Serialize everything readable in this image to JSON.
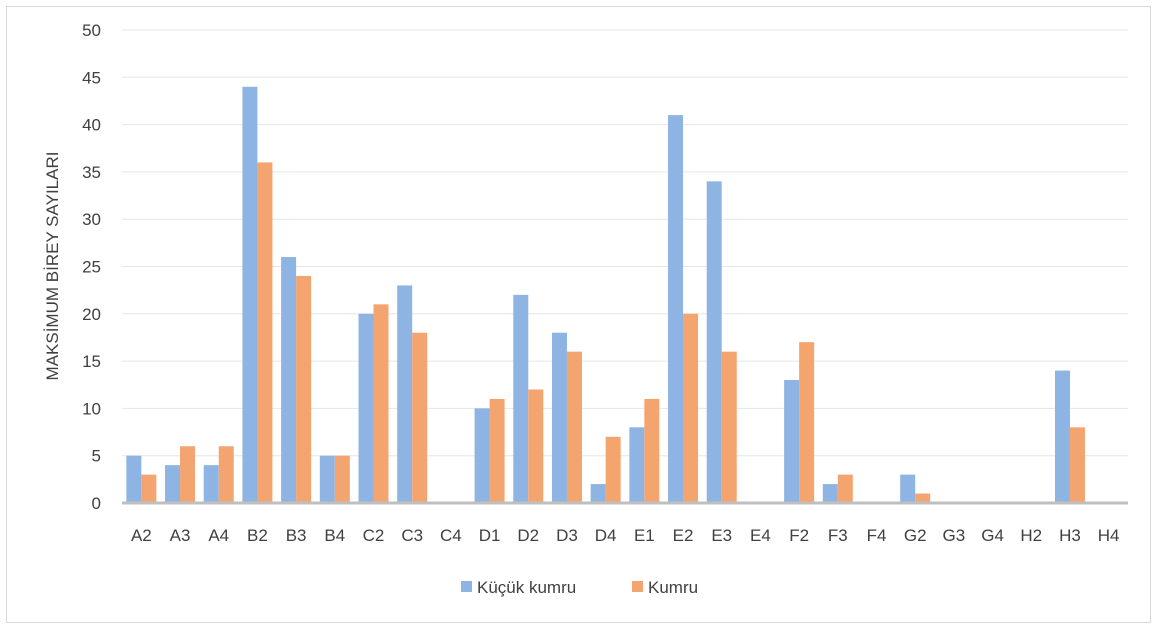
{
  "chart_data": {
    "type": "bar",
    "title": "",
    "xlabel": "",
    "ylabel": "MAKSİMUM BİREY SAYILARI",
    "ylim": [
      0,
      50
    ],
    "yticks": [
      0,
      5,
      10,
      15,
      20,
      25,
      30,
      35,
      40,
      45,
      50
    ],
    "grid": true,
    "legend_position": "bottom",
    "categories": [
      "A2",
      "A3",
      "A4",
      "B2",
      "B3",
      "B4",
      "C2",
      "C3",
      "C4",
      "D1",
      "D2",
      "D3",
      "D4",
      "E1",
      "E2",
      "E3",
      "E4",
      "F2",
      "F3",
      "F4",
      "G2",
      "G3",
      "G4",
      "H2",
      "H3",
      "H4"
    ],
    "series": [
      {
        "name": "Küçük kumru",
        "color": "#8db4e2",
        "values": [
          5,
          4,
          4,
          44,
          26,
          5,
          20,
          23,
          0,
          10,
          22,
          18,
          2,
          8,
          41,
          34,
          0,
          13,
          2,
          0,
          3,
          0,
          0,
          0,
          14,
          0
        ]
      },
      {
        "name": "Kumru",
        "color": "#f4a46f",
        "values": [
          3,
          6,
          6,
          36,
          24,
          5,
          21,
          18,
          0,
          11,
          12,
          16,
          7,
          11,
          20,
          16,
          0,
          17,
          3,
          0,
          1,
          0,
          0,
          0,
          8,
          0
        ]
      }
    ]
  }
}
